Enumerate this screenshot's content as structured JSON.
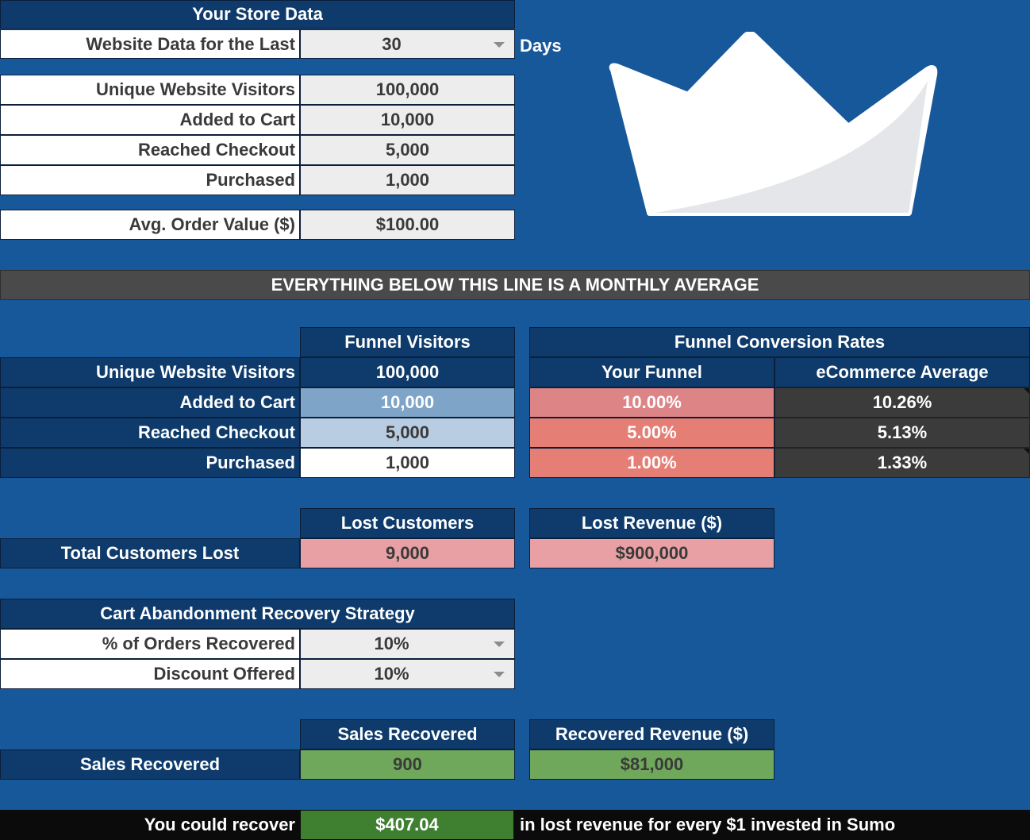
{
  "store": {
    "header": "Your Store Data",
    "period_label": "Website Data for the Last",
    "period_value": "30",
    "period_unit": "Days",
    "rows": [
      {
        "label": "Unique Website Visitors",
        "value": "100,000"
      },
      {
        "label": "Added to Cart",
        "value": "10,000"
      },
      {
        "label": "Reached Checkout",
        "value": "5,000"
      },
      {
        "label": "Purchased",
        "value": "1,000"
      }
    ],
    "aov_label": "Avg. Order Value ($)",
    "aov_value": "$100.00"
  },
  "divider": "EVERYTHING BELOW THIS LINE IS A MONTHLY AVERAGE",
  "funnel": {
    "visitors_header": "Funnel Visitors",
    "rates_header": "Funnel Conversion Rates",
    "your_funnel_header": "Your Funnel",
    "ecommerce_header": "eCommerce Average",
    "rows": [
      {
        "label": "Unique Website Visitors",
        "visitors": "100,000"
      },
      {
        "label": "Added to Cart",
        "visitors": "10,000",
        "yours": "10.00%",
        "avg": "10.26%"
      },
      {
        "label": "Reached Checkout",
        "visitors": "5,000",
        "yours": "5.00%",
        "avg": "5.13%"
      },
      {
        "label": "Purchased",
        "visitors": "1,000",
        "yours": "1.00%",
        "avg": "1.33%"
      }
    ]
  },
  "lost": {
    "customers_header": "Lost Customers",
    "revenue_header": "Lost Revenue ($)",
    "row_label": "Total Customers Lost",
    "customers_value": "9,000",
    "revenue_value": "$900,000"
  },
  "strategy": {
    "header": "Cart Abandonment Recovery Strategy",
    "orders_label": "% of Orders Recovered",
    "orders_value": "10%",
    "discount_label": "Discount Offered",
    "discount_value": "10%"
  },
  "recovered": {
    "sales_header": "Sales Recovered",
    "revenue_header": "Recovered Revenue ($)",
    "row_label": "Sales Recovered",
    "sales_value": "900",
    "revenue_value": "$81,000"
  },
  "footer": {
    "prefix": "You could recover",
    "value": "$407.04",
    "suffix": "in lost revenue for every $1 invested in Sumo"
  },
  "colors": {
    "background": "#17589a",
    "header_navy": "#0e3b6b",
    "loss_red": "#e57f76",
    "loss_pink": "#e8a0a4",
    "gain_green": "#6fa85a",
    "avg_dark": "#3b3b3b"
  },
  "logo_icon": "crown-icon"
}
